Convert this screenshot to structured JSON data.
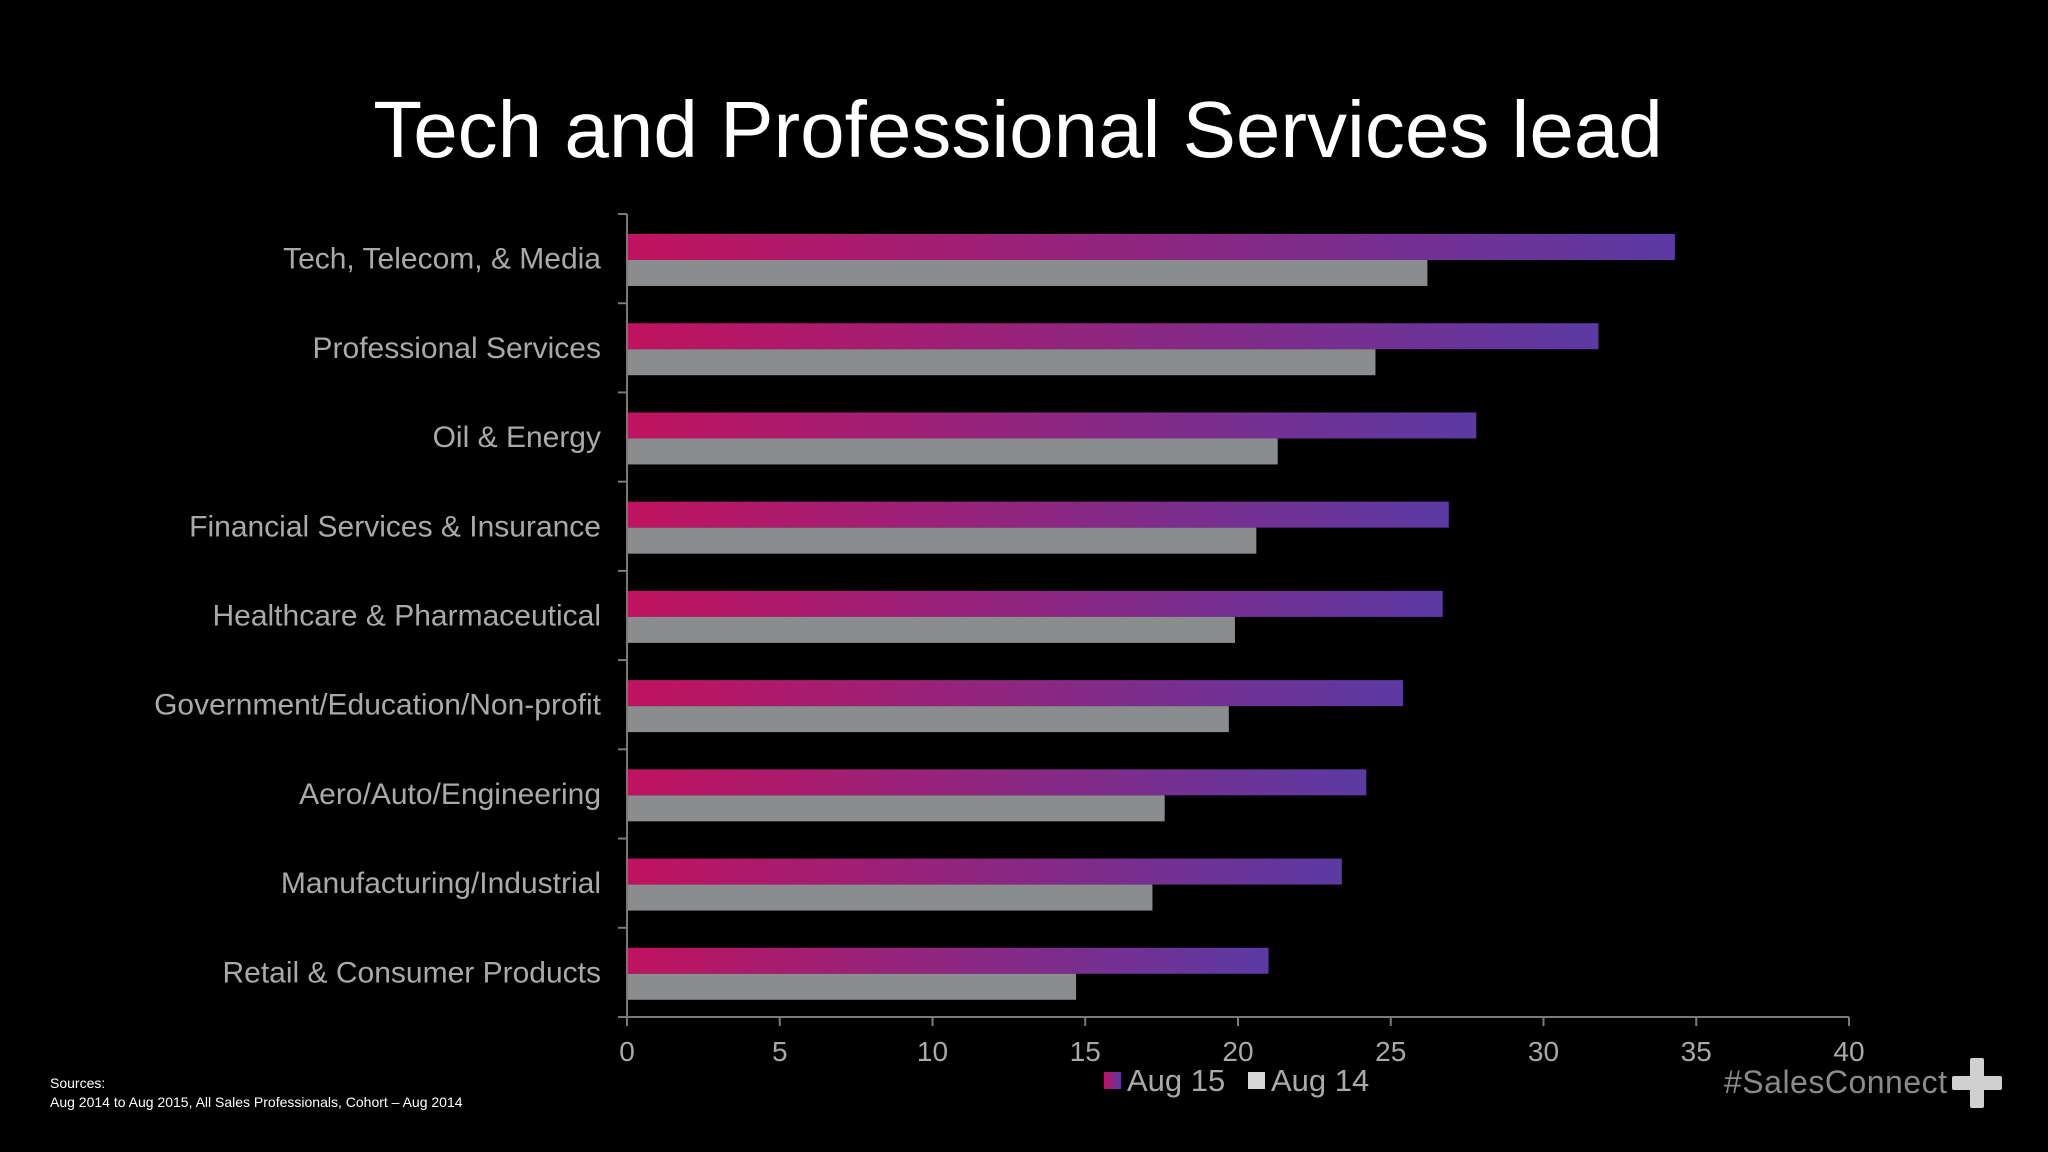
{
  "slide": {
    "title": "Tech and Professional Services lead",
    "sources_heading": "Sources:",
    "sources_text": "Aug 2014 to Aug 2015, All Sales Professionals, Cohort – Aug 2014",
    "brand": "#SalesConnect",
    "brand_icon": "plus-icon"
  },
  "chart_data": {
    "type": "bar",
    "orientation": "horizontal",
    "title": "Tech and Professional Services lead",
    "categories": [
      "Tech, Telecom, & Media",
      "Professional Services",
      "Oil & Energy",
      "Financial Services & Insurance",
      "Healthcare & Pharmaceutical",
      "Government/Education/Non-profit",
      "Aero/Auto/Engineering",
      "Manufacturing/Industrial",
      "Retail & Consumer Products"
    ],
    "series": [
      {
        "name": "Aug 15",
        "values": [
          34.3,
          31.8,
          27.8,
          26.9,
          26.7,
          25.4,
          24.2,
          23.4,
          21.0
        ],
        "color_start": "#c0135f",
        "color_end": "#5b3aa3"
      },
      {
        "name": "Aug 14",
        "values": [
          26.2,
          24.5,
          21.3,
          20.6,
          19.9,
          19.7,
          17.6,
          17.2,
          14.7
        ],
        "color": "#8a8c8e"
      }
    ],
    "xlim": [
      0,
      40
    ],
    "xticks": [
      0,
      5,
      10,
      15,
      20,
      25,
      30,
      35,
      40
    ],
    "xlabel": "",
    "ylabel": "",
    "grid": false,
    "legend": "bottom-center",
    "axis_color": "#7a7a7a"
  }
}
